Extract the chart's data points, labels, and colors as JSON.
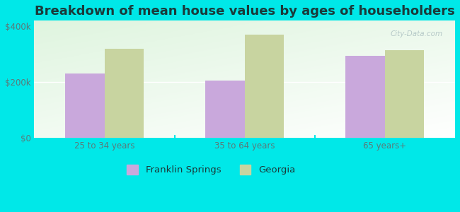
{
  "title": "Breakdown of mean house values by ages of householders",
  "categories": [
    "25 to 34 years",
    "35 to 64 years",
    "65 years+"
  ],
  "franklin_springs": [
    230000,
    205000,
    295000
  ],
  "georgia": [
    320000,
    370000,
    315000
  ],
  "franklin_color": "#c9a8dc",
  "georgia_color": "#c8d4a0",
  "background_color": "#00e8e8",
  "ylim": [
    0,
    420000
  ],
  "yticks": [
    0,
    200000,
    400000
  ],
  "ytick_labels": [
    "$0",
    "$200k",
    "$400k"
  ],
  "legend_labels": [
    "Franklin Springs",
    "Georgia"
  ],
  "title_fontsize": 13,
  "tick_fontsize": 8.5,
  "legend_fontsize": 9.5,
  "bar_width": 0.28,
  "title_color": "#1a3a3a",
  "tick_color": "#5a7a7a",
  "watermark_color": "#b0c4c4"
}
